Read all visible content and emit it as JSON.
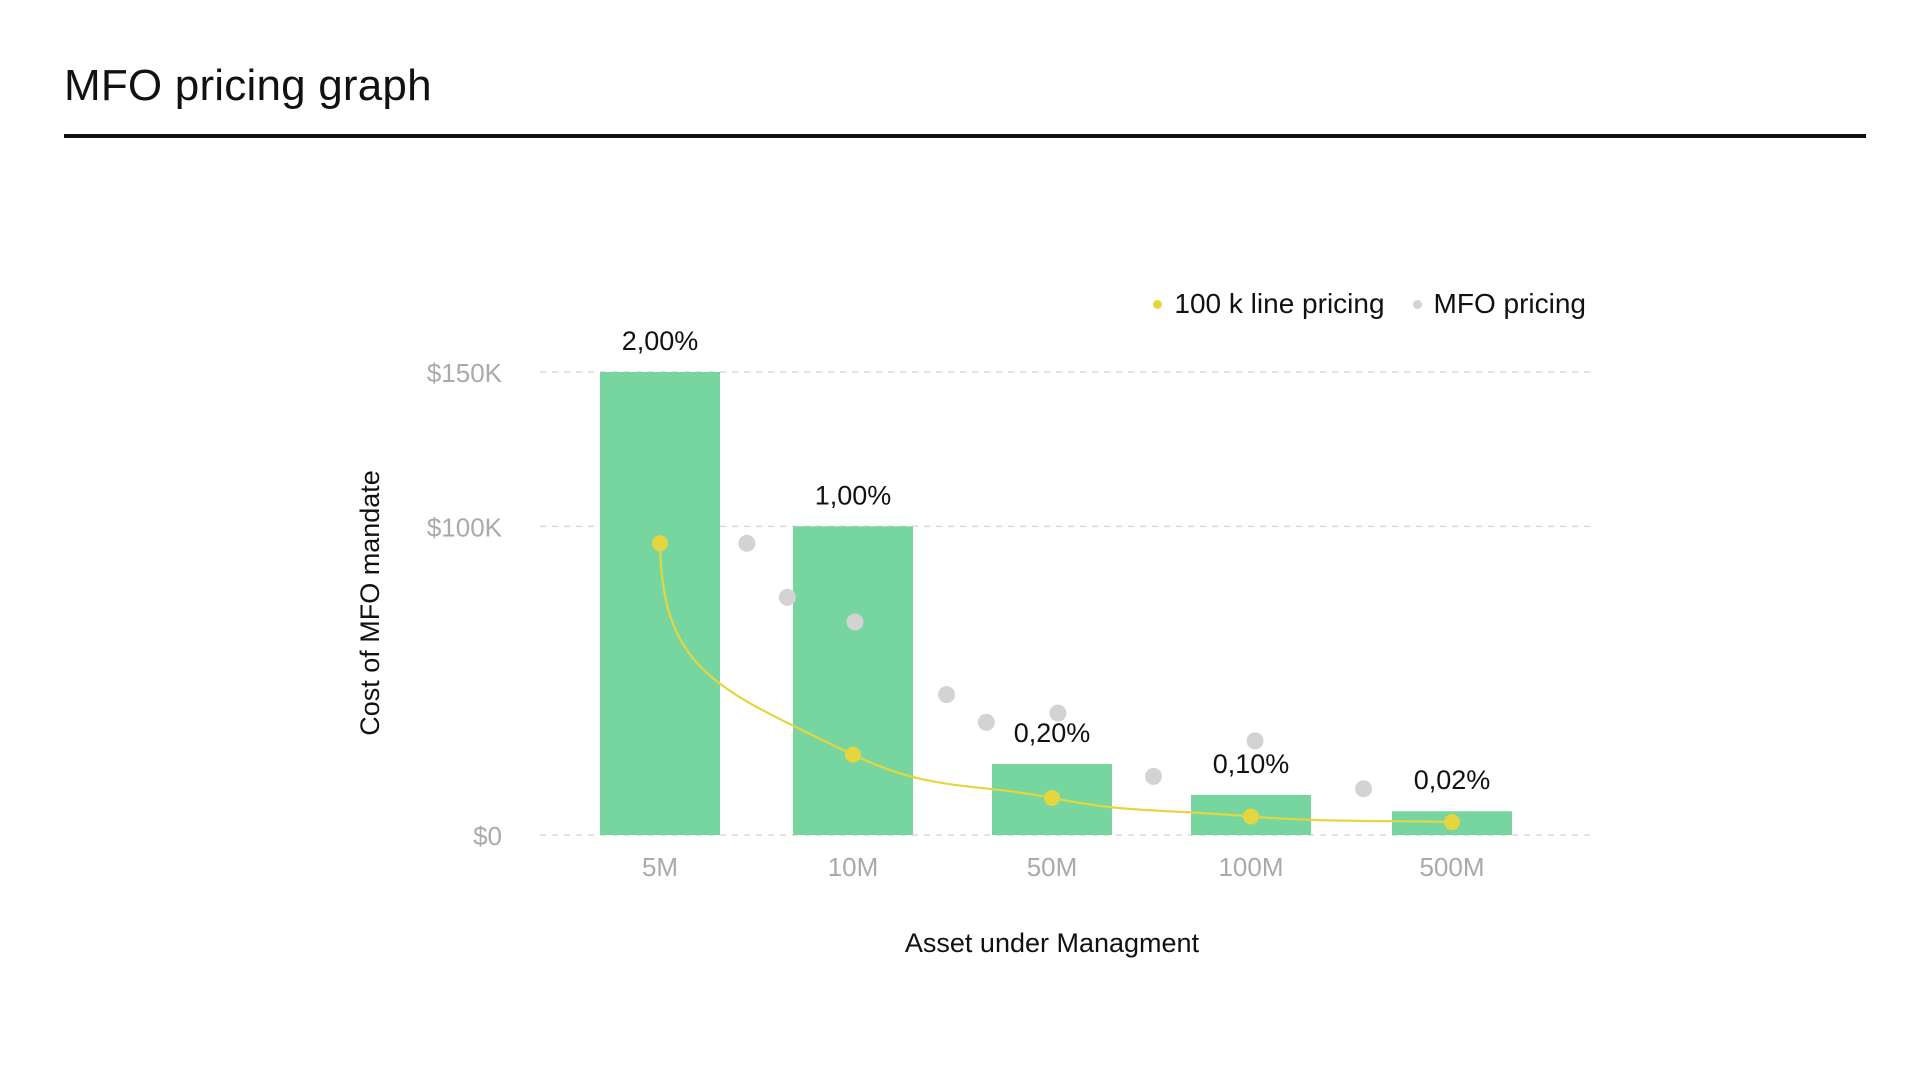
{
  "header": {
    "title": "MFO pricing graph"
  },
  "legend": [
    {
      "label": "100 k line pricing",
      "color": "#e5d53f"
    },
    {
      "label": "MFO pricing",
      "color": "#d3d3d3"
    }
  ],
  "chart_data": {
    "type": "bar",
    "title": "MFO pricing graph",
    "xlabel": "Asset under Managment",
    "ylabel": "Cost of MFO mandate",
    "ylim": [
      0,
      150000
    ],
    "grid": true,
    "legend_position": "top-right",
    "y_ticks": [
      {
        "label": "$150K",
        "value": 150000
      },
      {
        "label": "$100K",
        "value": 100000
      },
      {
        "label": "$0",
        "value": 0
      }
    ],
    "categories": [
      "5M",
      "10M",
      "50M",
      "100M",
      "500M"
    ],
    "bars": {
      "values": [
        150000,
        100000,
        23000,
        13000,
        7700
      ],
      "labels": [
        "2,00%",
        "1,00%",
        "0,20%",
        "0,10%",
        "0,02%"
      ],
      "color": "#77d69f"
    },
    "series": [
      {
        "name": "100 k line pricing",
        "type": "line",
        "color": "#e5d53f",
        "values": [
          94.5,
          26.0,
          12.0,
          6.0,
          4.2
        ]
      },
      {
        "name": "MFO pricing",
        "type": "scatter",
        "color": "#d3d3d3",
        "points": [
          {
            "x": 0.45,
            "y": 94.5
          },
          {
            "x": 0.66,
            "y": 77.0
          },
          {
            "x": 1.01,
            "y": 69.0
          },
          {
            "x": 1.47,
            "y": 45.5
          },
          {
            "x": 1.67,
            "y": 36.5
          },
          {
            "x": 2.03,
            "y": 39.5
          },
          {
            "x": 2.51,
            "y": 19.0
          },
          {
            "x": 3.02,
            "y": 30.5
          },
          {
            "x": 3.56,
            "y": 15.0
          }
        ]
      }
    ]
  },
  "colors": {
    "text": "#111111",
    "tick": "#aaaaaa",
    "grid": "#d9d9d9",
    "bar": "#77d69f",
    "line": "#e5d53f",
    "mfo": "#d3d3d3"
  }
}
